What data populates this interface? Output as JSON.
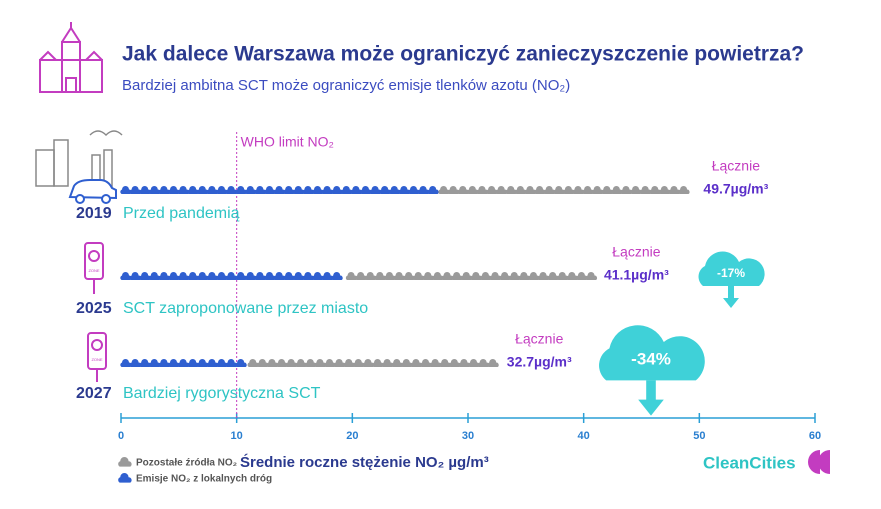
{
  "chart_data": {
    "type": "cloud-bar",
    "title": "Jak dalece Warszawa może ograniczyć zanieczyszczenie powietrza?",
    "subtitle": "Bardziej ambitna SCT może ograniczyć emisje tlenków azotu (NO₂)",
    "years": [
      "2019",
      "2025",
      "2027"
    ],
    "categories": [
      "Przed pandemią",
      "SCT zaproponowane przez miasto",
      "Bardziej rygorystyczna SCT"
    ],
    "series": [
      {
        "name": "Emisje NO₂ z lokalnych dróg",
        "color": "#2f5fd0",
        "values": [
          27.5,
          19.5,
          11
        ]
      },
      {
        "name": "Pozostałe źródła NO₂",
        "color": "#9a9a9a",
        "values": [
          22.2,
          21.6,
          21.7
        ]
      }
    ],
    "total_title": "Łącznie",
    "totals": [
      49.7,
      41.1,
      32.7
    ],
    "total_labels": [
      "49.7µg/m³",
      "41.1µg/m³",
      "32.7µg/m³"
    ],
    "reductions": [
      null,
      "-17%",
      "-34%"
    ],
    "reference_line": {
      "value": 10,
      "label": "WHO limit NO₂"
    },
    "xlabel": "Średnie roczne stężenie NO₂ µg/m³",
    "xlim": [
      0,
      60
    ],
    "xticks": [
      0,
      10,
      20,
      30,
      40,
      50,
      60
    ],
    "zone_text": "ZONE",
    "logo": "CleanCities"
  }
}
